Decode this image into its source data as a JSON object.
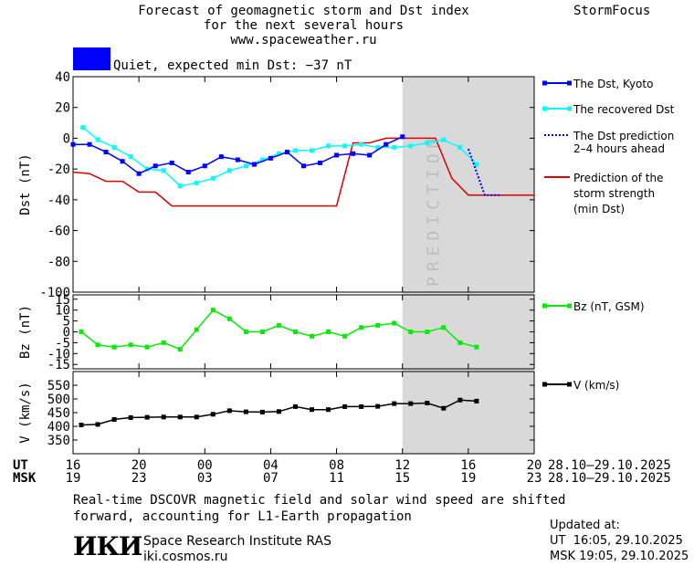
{
  "header": {
    "title_line1": "Forecast of geomagnetic storm and Dst index",
    "title_line2": "for the next several hours",
    "site": "www.spaceweather.ru",
    "brand": "StormFocus",
    "status_text": "Quiet, expected min Dst: −37 nT",
    "status_color": "#0000ff"
  },
  "prediction_label": "PREDICTION",
  "legend": {
    "dst_kyoto": "The Dst, Kyoto",
    "dst_recovered": "The recovered Dst",
    "dst_pred_1": "The Dst prediction",
    "dst_pred_2": "2–4 hours ahead",
    "storm_1": "Prediction of the",
    "storm_2": "storm strength",
    "storm_3": "(min Dst)",
    "bz": "Bz (nT, GSM)",
    "v": "V (km/s)"
  },
  "axes": {
    "ut_label": "UT",
    "msk_label": "MSK",
    "ut_ticks": [
      "16",
      "20",
      "00",
      "04",
      "08",
      "12",
      "16",
      "20"
    ],
    "msk_ticks": [
      "19",
      "23",
      "03",
      "07",
      "11",
      "15",
      "19",
      "23"
    ],
    "date_range_ut": "28.10–29.10.2025",
    "date_range_msk": "28.10–29.10.2025"
  },
  "footer": {
    "note_line1": "Real-time DSCOVR magnetic field and solar wind speed are shifted",
    "note_line2": "forward, accounting for L1-Earth propagation",
    "institute": "Space Research Institute RAS",
    "url": "iki.cosmos.ru",
    "logo_text": "ИКИ",
    "updated_label": "Updated at:",
    "updated_ut": "UT  16:05, 29.10.2025",
    "updated_msk": "MSK 19:05, 29.10.2025"
  },
  "colors": {
    "kyoto": "#0000ff",
    "recovered": "#00ffff",
    "storm": "#dd0000",
    "bz": "#00ee00",
    "v": "#000000",
    "prediction_band": "#d9d9d9"
  },
  "chart_data": [
    {
      "type": "line",
      "panel": "dst",
      "ylabel": "Dst (nT)",
      "ylim": [
        -100,
        40
      ],
      "yticks": [
        40,
        20,
        0,
        -20,
        -40,
        -60,
        -80,
        -100
      ],
      "xlim": [
        16,
        44
      ],
      "prediction_start": 36,
      "series": [
        {
          "name": "The Dst, Kyoto",
          "x": [
            16,
            17,
            18,
            19,
            20,
            21,
            22,
            23,
            24,
            25,
            26,
            27,
            28,
            29,
            30,
            31,
            32,
            33,
            34,
            35,
            36
          ],
          "values": [
            -4,
            -4,
            -9,
            -15,
            -23,
            -18,
            -16,
            -22,
            -18,
            -12,
            -14,
            -17,
            -13,
            -9,
            -18,
            -16,
            -11,
            -10,
            -11,
            -4,
            1
          ]
        },
        {
          "name": "The recovered Dst",
          "x": [
            16.6,
            17.5,
            18.5,
            19.5,
            20.5,
            21.5,
            22.5,
            23.5,
            24.5,
            25.5,
            26.5,
            27.5,
            28.5,
            29.5,
            30.5,
            31.5,
            32.5,
            33.5,
            34.5,
            35.5,
            36.5,
            37.5,
            38.5,
            39.5,
            40.5
          ],
          "values": [
            7,
            -1,
            -6,
            -12,
            -20,
            -21,
            -31,
            -29,
            -26,
            -21,
            -18,
            -14,
            -10,
            -8,
            -8,
            -5,
            -5,
            -4,
            -6,
            -6,
            -5,
            -3,
            -1,
            -6,
            -17
          ]
        },
        {
          "name": "The Dst prediction 2–4 hours ahead",
          "x": [
            40,
            41,
            42
          ],
          "values": [
            -7,
            -37,
            -37
          ]
        },
        {
          "name": "Prediction of the storm strength (min Dst)",
          "x": [
            16,
            17,
            18,
            19,
            20,
            21,
            22,
            23,
            24,
            25,
            26,
            27,
            28,
            29,
            30,
            31,
            32,
            33,
            34,
            35,
            36,
            37,
            38,
            39,
            40,
            41,
            42,
            43,
            44
          ],
          "values": [
            -22,
            -23,
            -28,
            -28,
            -35,
            -35,
            -44,
            -44,
            -44,
            -44,
            -44,
            -44,
            -44,
            -44,
            -44,
            -44,
            -44,
            -3,
            -3,
            0,
            0,
            0,
            0,
            -26,
            -37,
            -37,
            -37,
            -37,
            -37
          ]
        }
      ]
    },
    {
      "type": "line",
      "panel": "bz",
      "ylabel": "Bz (nT)",
      "ylim": [
        -17,
        17
      ],
      "yticks": [
        15,
        10,
        5,
        0,
        -5,
        -10,
        -15
      ],
      "series": [
        {
          "name": "Bz (nT, GSM)",
          "x": [
            16.5,
            17.5,
            18.5,
            19.5,
            20.5,
            21.5,
            22.5,
            23.5,
            24.5,
            25.5,
            26.5,
            27.5,
            28.5,
            29.5,
            30.5,
            31.5,
            32.5,
            33.5,
            34.5,
            35.5,
            36.5,
            37.5,
            38.5,
            39.5,
            40.5
          ],
          "values": [
            0,
            -6,
            -7,
            -6,
            -7,
            -5,
            -8,
            1,
            10,
            6,
            0,
            0,
            3,
            0,
            -2,
            0,
            -2,
            2,
            3,
            4,
            0,
            0,
            2,
            -5,
            -7
          ]
        }
      ]
    },
    {
      "type": "line",
      "panel": "v",
      "ylabel": "V (km/s)",
      "ylim": [
        300,
        600
      ],
      "yticks": [
        550,
        500,
        450,
        400,
        350
      ],
      "series": [
        {
          "name": "V (km/s)",
          "x": [
            16.5,
            17.5,
            18.5,
            19.5,
            20.5,
            21.5,
            22.5,
            23.5,
            24.5,
            25.5,
            26.5,
            27.5,
            28.5,
            29.5,
            30.5,
            31.5,
            32.5,
            33.5,
            34.5,
            35.5,
            36.5,
            37.5,
            38.5,
            39.5,
            40.5
          ],
          "values": [
            405,
            407,
            425,
            432,
            433,
            434,
            434,
            434,
            444,
            457,
            453,
            452,
            454,
            472,
            461,
            461,
            472,
            472,
            473,
            483,
            483,
            485,
            466,
            496,
            492
          ]
        }
      ]
    }
  ]
}
